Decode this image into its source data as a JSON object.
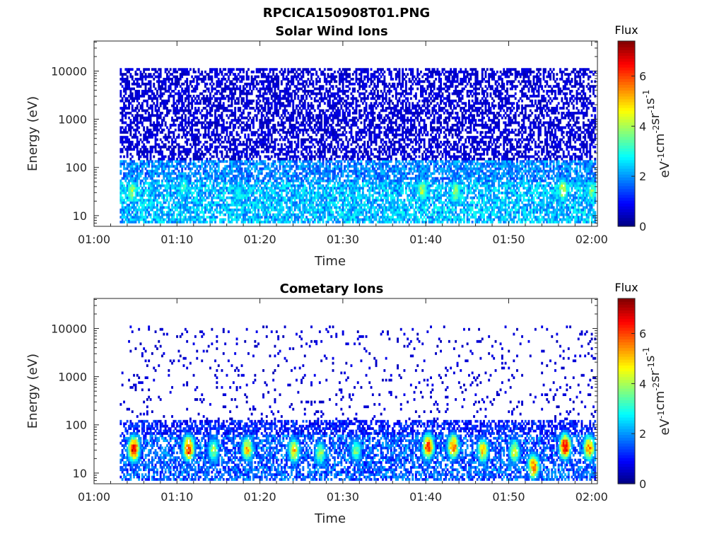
{
  "figure_title": "RPCICA150908T01.PNG",
  "colorscale": {
    "label": "Flux",
    "unit_base": "eV",
    "unit_parts": [
      {
        "t": "eV",
        "sup": "-1"
      },
      {
        "t": "cm",
        "sup": "-2"
      },
      {
        "t": "sr",
        "sup": "-1"
      },
      {
        "t": "s",
        "sup": "-1"
      }
    ],
    "range": [
      0,
      7.4
    ],
    "ticks": [
      "0",
      "2",
      "4",
      "6"
    ],
    "tick_values": [
      0,
      2,
      4,
      6
    ],
    "colormap": "jet"
  },
  "chart_data": [
    {
      "type": "heatmap",
      "title": "Solar Wind Ions",
      "xlabel": "Time",
      "ylabel": "Energy (eV)",
      "x_ticks": [
        "01:00",
        "01:10",
        "01:20",
        "01:30",
        "01:40",
        "01:50",
        "02:00"
      ],
      "x_tick_minutes": [
        0,
        10,
        20,
        30,
        40,
        50,
        60
      ],
      "xlim_minutes": [
        0,
        60.7
      ],
      "y_scale": "log",
      "y_ticks": [
        "10",
        "100",
        "1000",
        "10000"
      ],
      "y_tick_values": [
        10,
        100,
        1000,
        10000
      ],
      "ylim": [
        6,
        42000
      ],
      "data_start_minute": 3.1,
      "grid": false,
      "hotspots": [
        {
          "t": 4.5,
          "e": 32,
          "flux": 4.3
        },
        {
          "t": 10.7,
          "e": 40,
          "flux": 3.5
        },
        {
          "t": 17.2,
          "e": 28,
          "flux": 3.0
        },
        {
          "t": 39.5,
          "e": 34,
          "flux": 4.4
        },
        {
          "t": 43.5,
          "e": 32,
          "flux": 4.3
        },
        {
          "t": 56.4,
          "e": 35,
          "flux": 4.6
        },
        {
          "t": 59.9,
          "e": 32,
          "flux": 3.8
        }
      ]
    },
    {
      "type": "heatmap",
      "title": "Cometary Ions",
      "xlabel": "Time",
      "ylabel": "Energy (eV)",
      "x_ticks": [
        "01:00",
        "01:10",
        "01:20",
        "01:30",
        "01:40",
        "01:50",
        "02:00"
      ],
      "x_tick_minutes": [
        0,
        10,
        20,
        30,
        40,
        50,
        60
      ],
      "xlim_minutes": [
        0,
        60.7
      ],
      "y_scale": "log",
      "y_ticks": [
        "10",
        "100",
        "1000",
        "10000"
      ],
      "y_tick_values": [
        10,
        100,
        1000,
        10000
      ],
      "ylim": [
        6,
        42000
      ],
      "data_start_minute": 3.1,
      "grid": false,
      "hotspots": [
        {
          "t": 4.7,
          "e": 32,
          "flux": 7.0
        },
        {
          "t": 11.3,
          "e": 33,
          "flux": 6.8
        },
        {
          "t": 14.3,
          "e": 30,
          "flux": 4.2
        },
        {
          "t": 18.4,
          "e": 32,
          "flux": 5.2
        },
        {
          "t": 24.0,
          "e": 30,
          "flux": 5.2
        },
        {
          "t": 27.2,
          "e": 26,
          "flux": 4.2
        },
        {
          "t": 31.5,
          "e": 30,
          "flux": 4.0
        },
        {
          "t": 40.2,
          "e": 36,
          "flux": 6.6
        },
        {
          "t": 43.2,
          "e": 36,
          "flux": 6.4
        },
        {
          "t": 46.8,
          "e": 30,
          "flux": 5.2
        },
        {
          "t": 50.6,
          "e": 28,
          "flux": 4.8
        },
        {
          "t": 52.9,
          "e": 14,
          "flux": 6.0
        },
        {
          "t": 56.7,
          "e": 36,
          "flux": 7.2
        },
        {
          "t": 59.6,
          "e": 34,
          "flux": 6.0
        }
      ]
    }
  ]
}
